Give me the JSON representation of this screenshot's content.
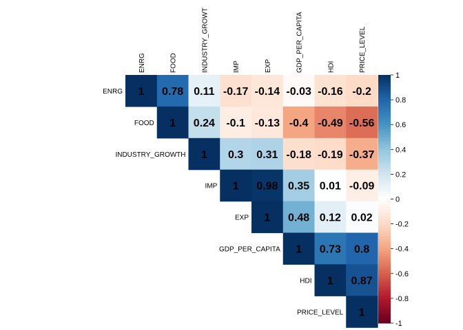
{
  "chart_data": {
    "type": "heatmap",
    "subtype": "correlation-matrix-upper",
    "title": "",
    "variables": [
      "ENRG",
      "FOOD",
      "INDUSTRY_GROWTH",
      "IMP",
      "EXP",
      "GDP_PER_CAPITA",
      "HDI",
      "PRICE_LEVEL"
    ],
    "top_labels": [
      "ENRG",
      "FOOD",
      "INDUSTRY_GROWT",
      "IMP",
      "EXP",
      "GDP_PER_CAPITA",
      "HDI",
      "PRICE_LEVEL"
    ],
    "matrix": [
      [
        1,
        0.78,
        0.11,
        -0.17,
        -0.14,
        -0.03,
        -0.16,
        -0.2
      ],
      [
        null,
        1,
        0.24,
        -0.1,
        -0.13,
        -0.4,
        -0.49,
        -0.56
      ],
      [
        null,
        null,
        1,
        0.3,
        0.31,
        -0.18,
        -0.19,
        -0.37
      ],
      [
        null,
        null,
        null,
        1,
        0.98,
        0.35,
        0.01,
        -0.09
      ],
      [
        null,
        null,
        null,
        null,
        1,
        0.48,
        0.12,
        0.02
      ],
      [
        null,
        null,
        null,
        null,
        null,
        1,
        0.73,
        0.8
      ],
      [
        null,
        null,
        null,
        null,
        null,
        null,
        1,
        0.87
      ],
      [
        null,
        null,
        null,
        null,
        null,
        null,
        null,
        1
      ]
    ],
    "colorbar": {
      "range": [
        -1,
        1
      ],
      "ticks": [
        "1",
        "0.8",
        "0.6",
        "0.4",
        "0.2",
        "0",
        "-0.2",
        "-0.4",
        "-0.6",
        "-0.8",
        "-1"
      ],
      "placement": "right"
    },
    "colors": {
      "negative_end": "#67001f",
      "neutral": "#ffffff",
      "positive_end": "#053061"
    }
  }
}
